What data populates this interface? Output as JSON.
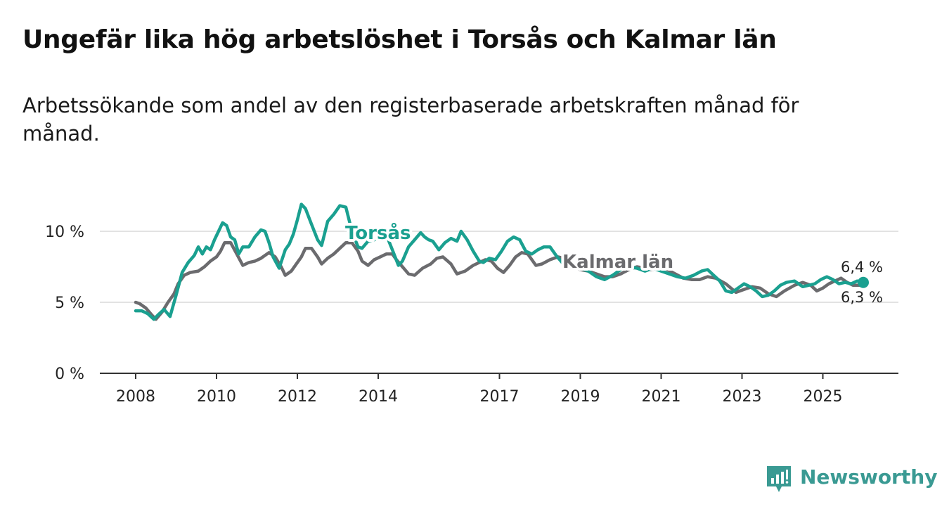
{
  "title": "Ungefär lika hög arbetslöshet i Torsås och Kalmar län",
  "subtitle": "Arbetssökande som andel av den registerbaserade arbetskraften månad för månad.",
  "brand": {
    "name": "Newsworthy",
    "icon": "bar-chart-logo-icon",
    "color": "#3a9a93"
  },
  "chart_data": {
    "type": "line",
    "title": "Ungefär lika hög arbetslöshet i Torsås och Kalmar län",
    "xlabel": "",
    "ylabel": "",
    "xlim": [
      2008.0,
      2027.5
    ],
    "ylim": [
      0,
      12.5
    ],
    "y_ticks": [
      {
        "value": 0,
        "label": "0 %"
      },
      {
        "value": 5,
        "label": "5 %"
      },
      {
        "value": 10,
        "label": "10 %"
      }
    ],
    "x_ticks": [
      {
        "value": 2008.0,
        "label": "2008"
      },
      {
        "value": 2010.0,
        "label": "2010"
      },
      {
        "value": 2012.0,
        "label": "2012"
      },
      {
        "value": 2014.0,
        "label": "2014"
      },
      {
        "value": 2017.0,
        "label": "2017"
      },
      {
        "value": 2019.0,
        "label": "2019"
      },
      {
        "value": 2021.0,
        "label": "2021"
      },
      {
        "value": 2023.0,
        "label": "2023"
      },
      {
        "value": 2025.0,
        "label": "2025"
      }
    ],
    "series": [
      {
        "name": "Kalmar län",
        "color": "#6b6b6e",
        "x": [
          2008.0,
          2008.1,
          2008.25,
          2008.4,
          2008.5,
          2008.65,
          2008.8,
          2008.95,
          2009.05,
          2009.2,
          2009.35,
          2009.55,
          2009.7,
          2009.85,
          2010.0,
          2010.1,
          2010.2,
          2010.35,
          2010.5,
          2010.65,
          2010.8,
          2010.95,
          2011.1,
          2011.3,
          2011.45,
          2011.6,
          2011.7,
          2011.85,
          2012.0,
          2012.1,
          2012.2,
          2012.35,
          2012.5,
          2012.6,
          2012.75,
          2012.9,
          2013.05,
          2013.2,
          2013.35,
          2013.5,
          2013.6,
          2013.75,
          2013.9,
          2014.05,
          2014.2,
          2014.35,
          2014.45,
          2014.6,
          2014.75,
          2014.9,
          2015.1,
          2015.3,
          2015.45,
          2015.6,
          2015.8,
          2015.95,
          2016.15,
          2016.35,
          2016.5,
          2016.65,
          2016.8,
          2016.95,
          2017.1,
          2017.25,
          2017.4,
          2017.55,
          2017.7,
          2017.9,
          2018.05,
          2018.25,
          2018.45,
          2018.6,
          2018.8,
          2019.0,
          2019.2,
          2019.4,
          2019.6,
          2019.8,
          2020.0,
          2020.2,
          2020.4,
          2020.6,
          2020.75,
          2020.95,
          2021.15,
          2021.35,
          2021.55,
          2021.75,
          2021.95,
          2022.15,
          2022.35,
          2022.6,
          2022.85,
          2023.05,
          2023.25,
          2023.45,
          2023.65,
          2023.85,
          2024.05,
          2024.3,
          2024.5,
          2024.7,
          2024.85,
          2025.0,
          2025.15,
          2025.3,
          2025.45,
          2025.6,
          2025.75,
          2025.9,
          2026.0
        ],
        "values": [
          5.0,
          4.9,
          4.6,
          4.1,
          3.8,
          4.3,
          5.0,
          5.6,
          6.3,
          6.9,
          7.1,
          7.2,
          7.5,
          7.9,
          8.2,
          8.6,
          9.2,
          9.2,
          8.4,
          7.6,
          7.8,
          7.9,
          8.1,
          8.5,
          8.2,
          7.5,
          6.9,
          7.2,
          7.8,
          8.2,
          8.8,
          8.8,
          8.2,
          7.7,
          8.1,
          8.4,
          8.8,
          9.2,
          9.2,
          8.6,
          7.9,
          7.6,
          8.0,
          8.2,
          8.4,
          8.4,
          8.0,
          7.5,
          7.0,
          6.9,
          7.4,
          7.7,
          8.1,
          8.2,
          7.7,
          7.0,
          7.2,
          7.6,
          7.8,
          8.0,
          7.9,
          7.4,
          7.1,
          7.6,
          8.2,
          8.5,
          8.4,
          7.6,
          7.7,
          8.0,
          8.2,
          8.1,
          7.5,
          7.3,
          7.2,
          7.0,
          6.8,
          6.8,
          7.0,
          7.3,
          7.5,
          7.4,
          7.3,
          7.4,
          7.3,
          7.0,
          6.7,
          6.6,
          6.6,
          6.8,
          6.7,
          6.3,
          5.7,
          5.9,
          6.1,
          6.0,
          5.6,
          5.4,
          5.8,
          6.2,
          6.4,
          6.2,
          5.8,
          6.0,
          6.3,
          6.5,
          6.7,
          6.4,
          6.2,
          6.2,
          6.3
        ]
      },
      {
        "name": "Torsås",
        "color": "#1aa090",
        "x": [
          2008.0,
          2008.15,
          2008.3,
          2008.45,
          2008.55,
          2008.7,
          2008.85,
          2009.0,
          2009.15,
          2009.3,
          2009.45,
          2009.55,
          2009.65,
          2009.75,
          2009.85,
          2009.95,
          2010.05,
          2010.15,
          2010.25,
          2010.35,
          2010.45,
          2010.55,
          2010.65,
          2010.8,
          2010.95,
          2011.1,
          2011.2,
          2011.3,
          2011.4,
          2011.55,
          2011.7,
          2011.8,
          2011.9,
          2012.0,
          2012.1,
          2012.2,
          2012.35,
          2012.5,
          2012.6,
          2012.75,
          2012.9,
          2013.05,
          2013.2,
          2013.35,
          2013.5,
          2013.6,
          2013.75,
          2013.9,
          2014.05,
          2014.15,
          2014.25,
          2014.35,
          2014.5,
          2014.6,
          2014.75,
          2014.9,
          2015.05,
          2015.15,
          2015.25,
          2015.35,
          2015.5,
          2015.65,
          2015.8,
          2015.95,
          2016.05,
          2016.2,
          2016.35,
          2016.5,
          2016.6,
          2016.75,
          2016.9,
          2017.05,
          2017.2,
          2017.35,
          2017.5,
          2017.65,
          2017.8,
          2017.95,
          2018.1,
          2018.25,
          2018.4,
          2018.55,
          2018.7,
          2018.85,
          2019.0,
          2019.2,
          2019.4,
          2019.6,
          2019.8,
          2020.0,
          2020.2,
          2020.4,
          2020.6,
          2020.8,
          2021.0,
          2021.2,
          2021.4,
          2021.6,
          2021.8,
          2022.0,
          2022.15,
          2022.3,
          2022.45,
          2022.6,
          2022.75,
          2022.9,
          2023.05,
          2023.2,
          2023.35,
          2023.5,
          2023.65,
          2023.8,
          2023.95,
          2024.1,
          2024.3,
          2024.5,
          2024.65,
          2024.8,
          2024.95,
          2025.1,
          2025.25,
          2025.4,
          2025.55,
          2025.7,
          2025.85,
          2026.0
        ],
        "values": [
          4.4,
          4.4,
          4.2,
          3.8,
          4.1,
          4.5,
          4.0,
          5.5,
          7.1,
          7.8,
          8.3,
          8.9,
          8.4,
          8.9,
          8.7,
          9.4,
          10.0,
          10.6,
          10.4,
          9.6,
          9.4,
          8.4,
          8.9,
          8.9,
          9.6,
          10.1,
          10.0,
          9.2,
          8.2,
          7.4,
          8.7,
          9.1,
          9.8,
          10.8,
          11.9,
          11.6,
          10.5,
          9.4,
          9.0,
          10.7,
          11.2,
          11.8,
          11.7,
          10.0,
          8.9,
          8.8,
          9.3,
          9.4,
          9.6,
          9.5,
          9.4,
          8.7,
          7.6,
          7.9,
          8.9,
          9.4,
          9.9,
          9.6,
          9.4,
          9.3,
          8.7,
          9.2,
          9.5,
          9.3,
          10.0,
          9.4,
          8.6,
          7.9,
          7.8,
          8.1,
          8.0,
          8.6,
          9.3,
          9.6,
          9.4,
          8.6,
          8.4,
          8.7,
          8.9,
          8.9,
          8.3,
          7.8,
          7.5,
          7.5,
          7.4,
          7.2,
          6.8,
          6.6,
          6.9,
          7.3,
          7.5,
          7.4,
          7.2,
          7.4,
          7.2,
          7.0,
          6.8,
          6.7,
          6.9,
          7.2,
          7.3,
          6.9,
          6.5,
          5.8,
          5.7,
          6.0,
          6.3,
          6.1,
          5.8,
          5.4,
          5.5,
          5.8,
          6.2,
          6.4,
          6.5,
          6.1,
          6.2,
          6.3,
          6.6,
          6.8,
          6.6,
          6.3,
          6.4,
          6.3,
          6.5,
          6.4
        ]
      }
    ],
    "labels": [
      {
        "text": "Torsås",
        "series": "Torsås"
      },
      {
        "text": "Kalmar län",
        "series": "Kalmar län"
      }
    ],
    "end_values": [
      {
        "text": "6,4 %",
        "series": "Torsås"
      },
      {
        "text": "6,3 %",
        "series": "Kalmar län"
      }
    ]
  }
}
